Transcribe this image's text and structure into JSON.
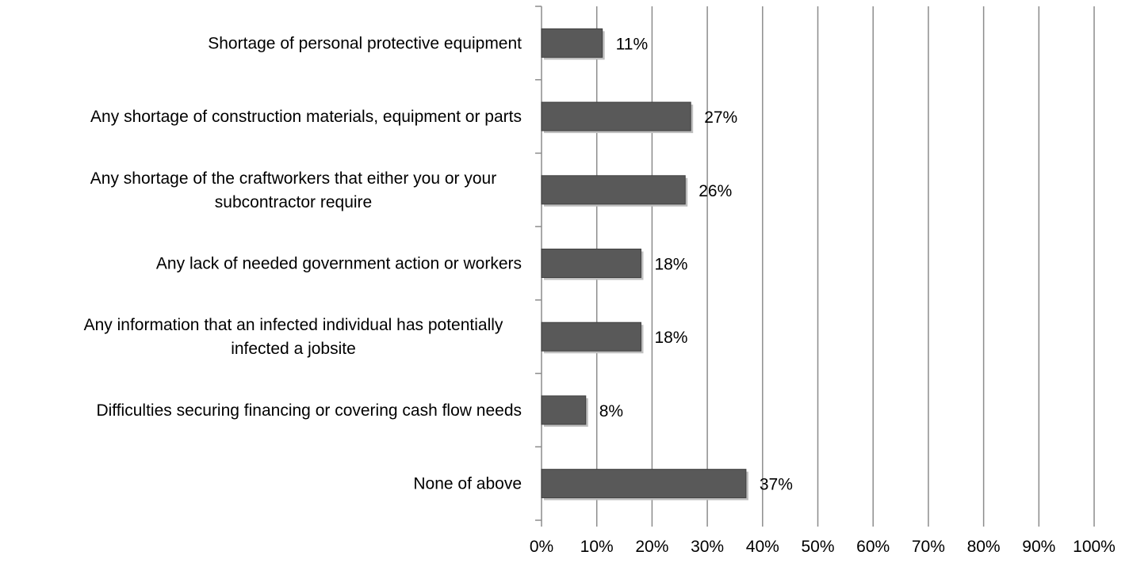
{
  "chart_data": {
    "type": "bar",
    "orientation": "horizontal",
    "categories": [
      [
        "Shortage of personal protective equipment"
      ],
      [
        "Any shortage of construction materials, equipment or parts"
      ],
      [
        "Any shortage of the craftworkers that either you or your",
        "subcontractor require"
      ],
      [
        "Any lack of needed government action or workers"
      ],
      [
        "Any information that an infected individual has potentially",
        "infected a jobsite"
      ],
      [
        "Difficulties securing financing or covering cash flow needs"
      ],
      [
        "None of above"
      ]
    ],
    "values": [
      11,
      27,
      26,
      18,
      18,
      8,
      37
    ],
    "data_labels": [
      "11%",
      "27%",
      "26%",
      "18%",
      "18%",
      "8%",
      "37%"
    ],
    "xlim": [
      0,
      100
    ],
    "x_ticks": [
      0,
      10,
      20,
      30,
      40,
      50,
      60,
      70,
      80,
      90,
      100
    ],
    "x_tick_labels": [
      "0%",
      "10%",
      "20%",
      "30%",
      "40%",
      "50%",
      "60%",
      "70%",
      "80%",
      "90%",
      "100%"
    ],
    "grid": "vertical",
    "legend": "none",
    "title": "",
    "xlabel": "",
    "ylabel": "",
    "colors": {
      "bar": "#595959",
      "bar_outline": "#404040",
      "grid": "#8c8c8c",
      "axis": "#8c8c8c",
      "shadow": "#bfbfbf"
    }
  }
}
